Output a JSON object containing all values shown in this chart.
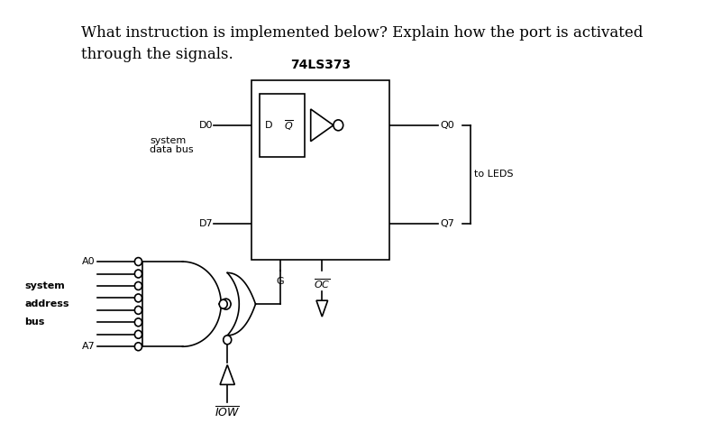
{
  "title_line1": "What instruction is implemented below? Explain how the port is activated",
  "title_line2": "through the signals.",
  "bg_color": "#ffffff",
  "text_color": "#000000",
  "chip_label": "74LS373",
  "pin_D0_label": "D0",
  "pin_D7_label": "D7",
  "pin_Q0_label": "Q0",
  "pin_Q7_label": "Q7",
  "pin_G_label": "G",
  "pin_OC_label": "OC",
  "label_system_data_bus_line1": "system",
  "label_system_data_bus_line2": "data bus",
  "label_to_LEDS": "to LEDS",
  "label_A0": "A0",
  "label_A7": "A7",
  "label_system_addr_line1": "system",
  "label_system_addr_line2": "address",
  "label_system_addr_line3": "bus",
  "label_IOW": "IOW",
  "font_size_title": 12,
  "font_size_labels": 8,
  "font_size_chip": 10
}
